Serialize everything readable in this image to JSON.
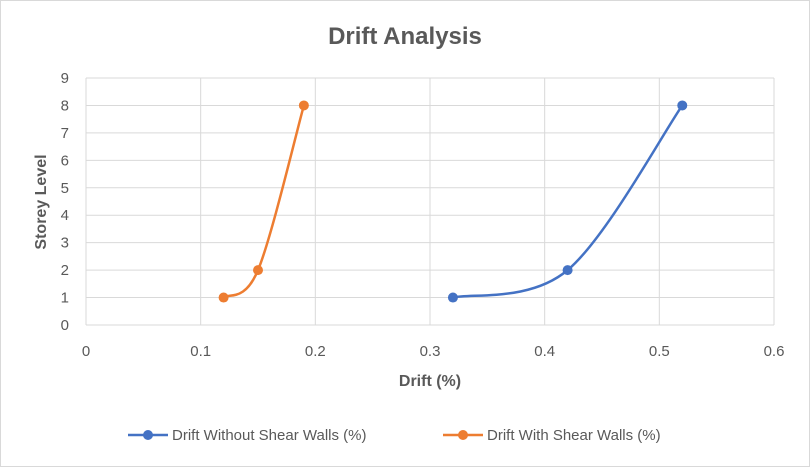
{
  "chart_data": {
    "type": "scatter",
    "title": "Drift Analysis",
    "xlabel": "Drift (%)",
    "ylabel": "Storey Level",
    "xlim": [
      0,
      0.6
    ],
    "ylim": [
      0,
      9
    ],
    "x_ticks": [
      "0",
      "0.1",
      "0.2",
      "0.3",
      "0.4",
      "0.5",
      "0.6"
    ],
    "y_ticks": [
      "0",
      "1",
      "2",
      "3",
      "4",
      "5",
      "6",
      "7",
      "8",
      "9"
    ],
    "grid": true,
    "legend_position": "bottom",
    "series": [
      {
        "name": "Drift Without Shear Walls (%)",
        "color": "#4472C4",
        "points": [
          [
            0.32,
            1
          ],
          [
            0.42,
            2
          ],
          [
            0.52,
            8
          ]
        ]
      },
      {
        "name": "Drift With Shear Walls (%)",
        "color": "#ED7D31",
        "points": [
          [
            0.12,
            1
          ],
          [
            0.15,
            2
          ],
          [
            0.19,
            8
          ]
        ]
      }
    ]
  }
}
